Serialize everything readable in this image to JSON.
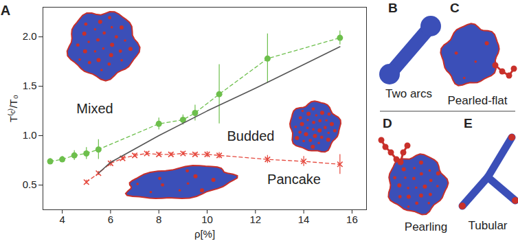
{
  "chart_data": {
    "type": "scatter",
    "panel_label": "A",
    "x_label": "ρ[%]",
    "y_label": "T⁽ᶜ⁾/T₀",
    "xlim": [
      3.2,
      16.6
    ],
    "ylim": [
      0.25,
      2.3
    ],
    "xticks": [
      4,
      6,
      8,
      10,
      12,
      14,
      16
    ],
    "yticks": [
      0.5,
      1,
      1.5,
      2
    ],
    "annotations": [
      "Mixed",
      "Budded",
      "Pancake"
    ],
    "series": [
      {
        "color": "#6dbf4c",
        "marker": "circle",
        "line_style": "dashed",
        "x": [
          3.5,
          4.0,
          4.5,
          5.0,
          5.5,
          8.0,
          9.0,
          9.5,
          10.5,
          12.5,
          15.5
        ],
        "values": [
          0.74,
          0.76,
          0.8,
          0.82,
          0.86,
          1.12,
          1.16,
          1.23,
          1.42,
          1.78,
          1.99
        ],
        "errors": [
          0.03,
          0.03,
          0.05,
          0.06,
          0.1,
          0.06,
          0.05,
          0.08,
          0.3,
          0.25,
          0.07
        ]
      },
      {
        "color": "#e5473c",
        "marker": "x",
        "line_style": "dashed",
        "x": [
          5.0,
          5.5,
          6.0,
          6.5,
          7.0,
          7.5,
          8.0,
          8.5,
          9.0,
          9.5,
          10.0,
          10.5,
          12.5,
          14.0,
          15.5
        ],
        "values": [
          0.53,
          0.62,
          0.72,
          0.77,
          0.8,
          0.82,
          0.81,
          0.81,
          0.82,
          0.81,
          0.81,
          0.8,
          0.76,
          0.74,
          0.71
        ],
        "errors": [
          0.02,
          0.02,
          0.03,
          0.02,
          0.02,
          0.02,
          0.02,
          0.02,
          0.02,
          0.02,
          0.03,
          0.03,
          0.04,
          0.05,
          0.1
        ]
      },
      {
        "color": "#555555",
        "line_style": "solid",
        "x": [
          5.5,
          6.0,
          8.0,
          10.0,
          12.0,
          14.0,
          15.5
        ],
        "values": [
          0.62,
          0.73,
          1.0,
          1.25,
          1.48,
          1.72,
          1.9
        ]
      }
    ]
  },
  "panels": [
    {
      "label": "B",
      "caption": "Two arcs"
    },
    {
      "label": "C",
      "caption": "Pearled-flat"
    },
    {
      "label": "D",
      "caption": "Pearling"
    },
    {
      "label": "E",
      "caption": "Tubular"
    }
  ]
}
